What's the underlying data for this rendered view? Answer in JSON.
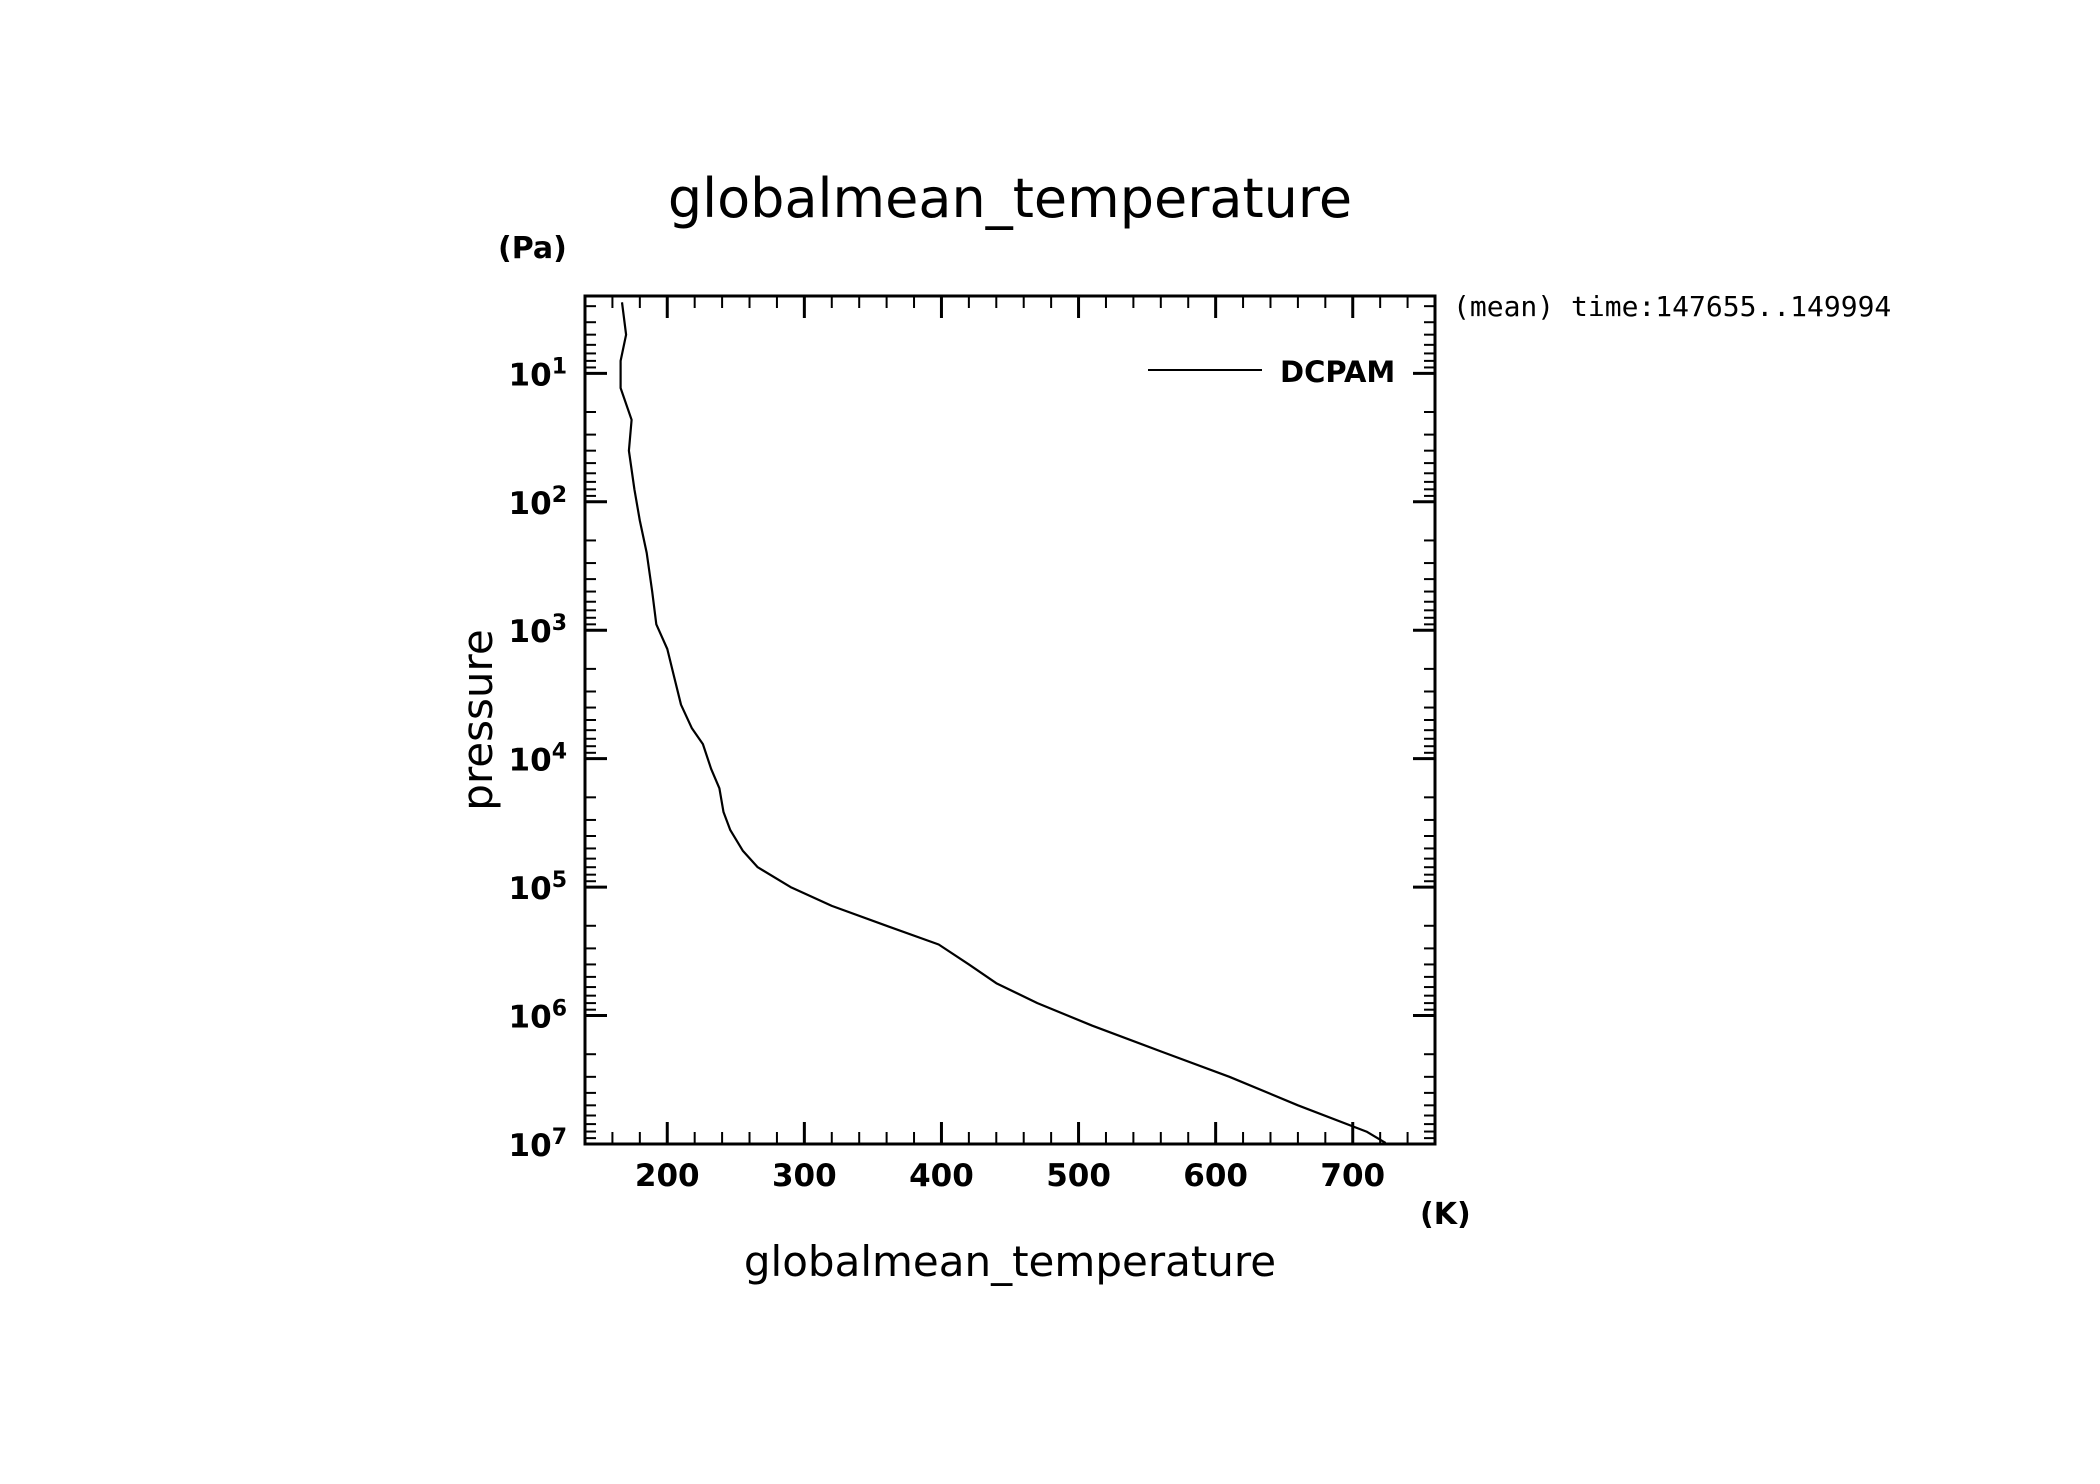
{
  "chart_data": {
    "type": "line",
    "title": "globalmean_temperature",
    "xlabel": "globalmean_temperature",
    "ylabel": "pressure",
    "x_unit": "(K)",
    "y_unit": "(Pa)",
    "annotation": "(mean) time:147655..149994",
    "xlim": [
      140,
      760
    ],
    "ylim": [
      10000000,
      2.5
    ],
    "y_scale": "log",
    "y_reversed": true,
    "x_ticks": [
      200,
      300,
      400,
      500,
      600,
      700
    ],
    "y_tick_labels": [
      {
        "base": "10",
        "exp": "1",
        "value": 10
      },
      {
        "base": "10",
        "exp": "2",
        "value": 100
      },
      {
        "base": "10",
        "exp": "3",
        "value": 1000
      },
      {
        "base": "10",
        "exp": "4",
        "value": 10000
      },
      {
        "base": "10",
        "exp": "5",
        "value": 100000
      },
      {
        "base": "10",
        "exp": "6",
        "value": 1000000
      },
      {
        "base": "10",
        "exp": "7",
        "value": 10000000
      }
    ],
    "grid": false,
    "legend_position": "top-right",
    "series": [
      {
        "name": "DCPAM",
        "color": "#000000",
        "points": [
          [
            167,
            2.8
          ],
          [
            170,
            5.0
          ],
          [
            166,
            8.0
          ],
          [
            166,
            13.0
          ],
          [
            174,
            23.0
          ],
          [
            172,
            40.0
          ],
          [
            176,
            80.0
          ],
          [
            180,
            140.0
          ],
          [
            185,
            250.0
          ],
          [
            189,
            500.0
          ],
          [
            192,
            900.0
          ],
          [
            200,
            1400.0
          ],
          [
            205,
            2300.0
          ],
          [
            210,
            3800.0
          ],
          [
            218,
            5800.0
          ],
          [
            226,
            7700.0
          ],
          [
            232,
            12000.0
          ],
          [
            238,
            17000.0
          ],
          [
            241,
            26000.0
          ],
          [
            246,
            36000.0
          ],
          [
            255,
            52000.0
          ],
          [
            266,
            70000.0
          ],
          [
            290,
            100000.0
          ],
          [
            320,
            140000.0
          ],
          [
            360,
            200000.0
          ],
          [
            398,
            280000.0
          ],
          [
            420,
            400000.0
          ],
          [
            440,
            560000.0
          ],
          [
            470,
            800000.0
          ],
          [
            510,
            1200000.0
          ],
          [
            560,
            1900000.0
          ],
          [
            610,
            3000000.0
          ],
          [
            660,
            5000000.0
          ],
          [
            710,
            8000000.0
          ],
          [
            724,
            9800000.0
          ]
        ]
      }
    ]
  }
}
